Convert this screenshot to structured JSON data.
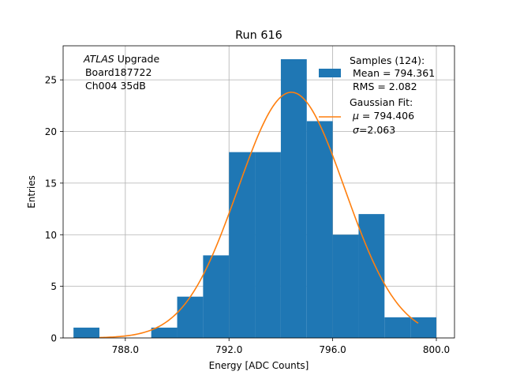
{
  "chart_data": {
    "type": "bar",
    "title": "Run 616",
    "xlabel": "Energy [ADC Counts]",
    "ylabel": "Entries",
    "xlim": [
      785.6,
      800.7
    ],
    "ylim": [
      0,
      28.3
    ],
    "grid": true,
    "x_ticks": [
      788.0,
      792.0,
      796.0,
      800.0
    ],
    "x_tick_labels": [
      "788.0",
      "792.0",
      "796.0",
      "800.0"
    ],
    "y_ticks": [
      0,
      5,
      10,
      15,
      20,
      25
    ],
    "y_tick_labels": [
      "0",
      "5",
      "10",
      "15",
      "20",
      "25"
    ],
    "bin_width": 1.0,
    "bins": [
      {
        "left": 786.0,
        "count": 1
      },
      {
        "left": 789.0,
        "count": 1
      },
      {
        "left": 790.0,
        "count": 4
      },
      {
        "left": 791.0,
        "count": 8
      },
      {
        "left": 792.0,
        "count": 18
      },
      {
        "left": 793.0,
        "count": 18
      },
      {
        "left": 794.0,
        "count": 27
      },
      {
        "left": 795.0,
        "count": 21
      },
      {
        "left": 796.0,
        "count": 10
      },
      {
        "left": 797.0,
        "count": 12
      },
      {
        "left": 798.0,
        "count": 2
      },
      {
        "left": 799.0,
        "count": 2
      }
    ],
    "fit": {
      "type": "gaussian",
      "amplitude": 23.8,
      "mu": 794.406,
      "sigma": 2.063,
      "x_range": [
        787.0,
        799.3
      ]
    },
    "colors": {
      "histogram": "#1f77b4",
      "fit": "#ff7f0e",
      "grid": "#b0b0b0"
    },
    "legend_position": "upper-right",
    "legend": {
      "samples_line1": "Samples (124):",
      "samples_line2": " Mean = 794.361",
      "samples_line3": " RMS = 2.082",
      "fit_line1": "Gaussian Fit:",
      "fit_line2_sym": "μ",
      "fit_line2_rest": " = 794.406",
      "fit_line3_sym": "σ",
      "fit_line3_rest": "=2.063"
    },
    "annotation": {
      "atlas": "ATLAS",
      "upgrade": " Upgrade",
      "board": " Board187722",
      "channel": " Ch004 35dB"
    }
  }
}
